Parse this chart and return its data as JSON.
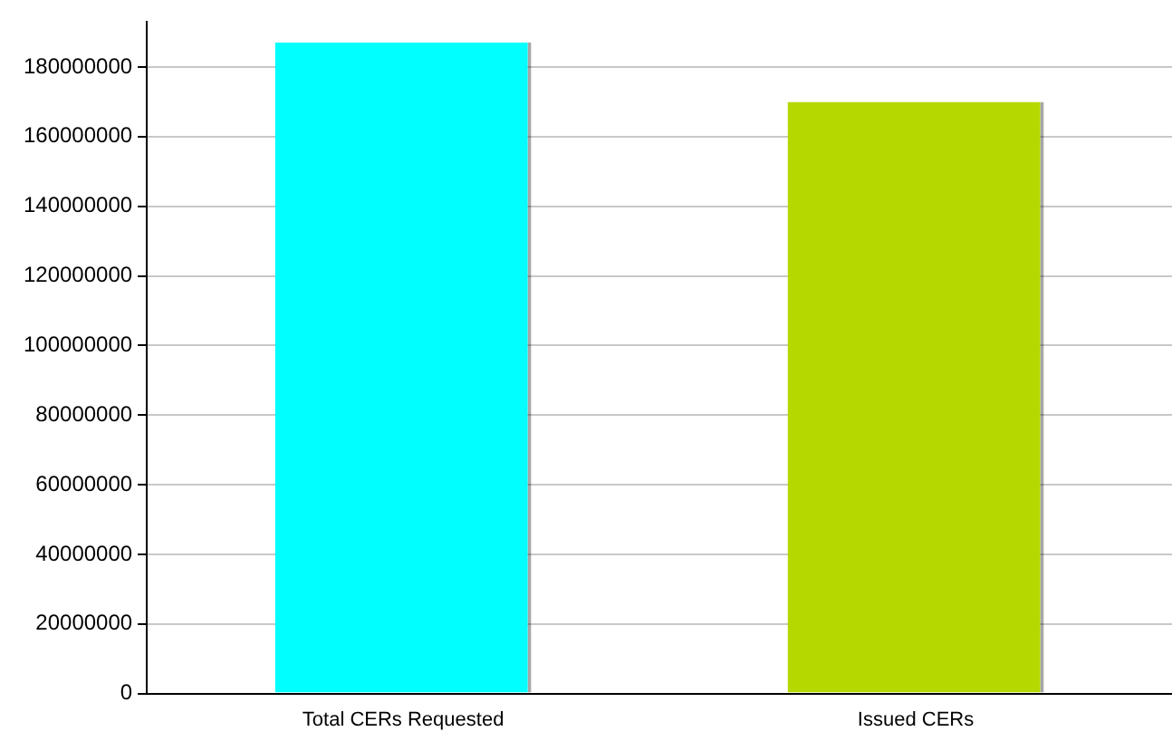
{
  "chart_data": {
    "type": "bar",
    "categories": [
      "Total CERs Requested",
      "Issued CERs"
    ],
    "values": [
      187000000,
      170000000
    ],
    "colors": [
      "#00ffff",
      "#b4d800"
    ],
    "ylim": [
      0,
      193000000
    ],
    "yticks": [
      0,
      20000000,
      40000000,
      60000000,
      80000000,
      100000000,
      120000000,
      140000000,
      160000000,
      180000000
    ],
    "grid": "y",
    "legend": false
  }
}
